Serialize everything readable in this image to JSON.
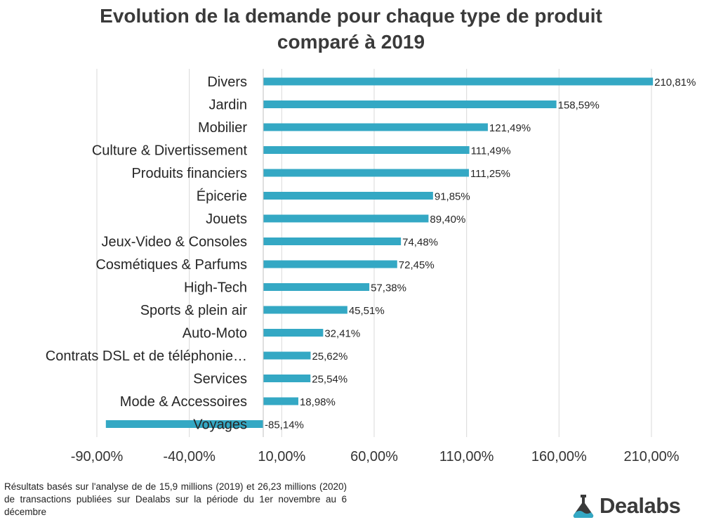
{
  "title_line1": "Evolution de la demande pour chaque type de produit",
  "title_line2": "comparé à 2019",
  "chart_data": {
    "type": "bar",
    "orientation": "horizontal",
    "title": "Evolution de la demande pour chaque type de produit comparé à 2019",
    "categories": [
      "Divers",
      "Jardin",
      "Mobilier",
      "Culture & Divertissement",
      "Produits financiers",
      "Épicerie",
      "Jouets",
      "Jeux-Video & Consoles",
      "Cosmétiques & Parfums",
      "High-Tech",
      "Sports & plein air",
      "Auto-Moto",
      "Contrats DSL et de téléphonie…",
      "Services",
      "Mode & Accessoires",
      "Voyages"
    ],
    "values": [
      210.81,
      158.59,
      121.49,
      111.49,
      111.25,
      91.85,
      89.4,
      74.48,
      72.45,
      57.38,
      45.51,
      32.41,
      25.62,
      25.54,
      18.98,
      -85.14
    ],
    "value_labels": [
      "210,81%",
      "158,59%",
      "121,49%",
      "111,49%",
      "111,25%",
      "91,85%",
      "89,40%",
      "74,48%",
      "72,45%",
      "57,38%",
      "45,51%",
      "32,41%",
      "25,62%",
      "25,54%",
      "18,98%",
      "-85,14%"
    ],
    "xticks": [
      -90,
      -40,
      10,
      60,
      110,
      160,
      210
    ],
    "xtick_labels": [
      "-90,00%",
      "-40,00%",
      "10,00%",
      "60,00%",
      "110,00%",
      "160,00%",
      "210,00%"
    ],
    "xlim": [
      -90,
      210
    ],
    "grid": true,
    "bar_color": "#34a8c4"
  },
  "footnote": "Résultats basés sur l'analyse de de 15,9 millions (2019) et 26,23 millions (2020) de transactions publiées sur Dealabs sur la période du 1er novembre au 6 décembre",
  "logo": {
    "text": "Dealabs",
    "icon": "flask-icon",
    "color": "#3a3a3a"
  }
}
